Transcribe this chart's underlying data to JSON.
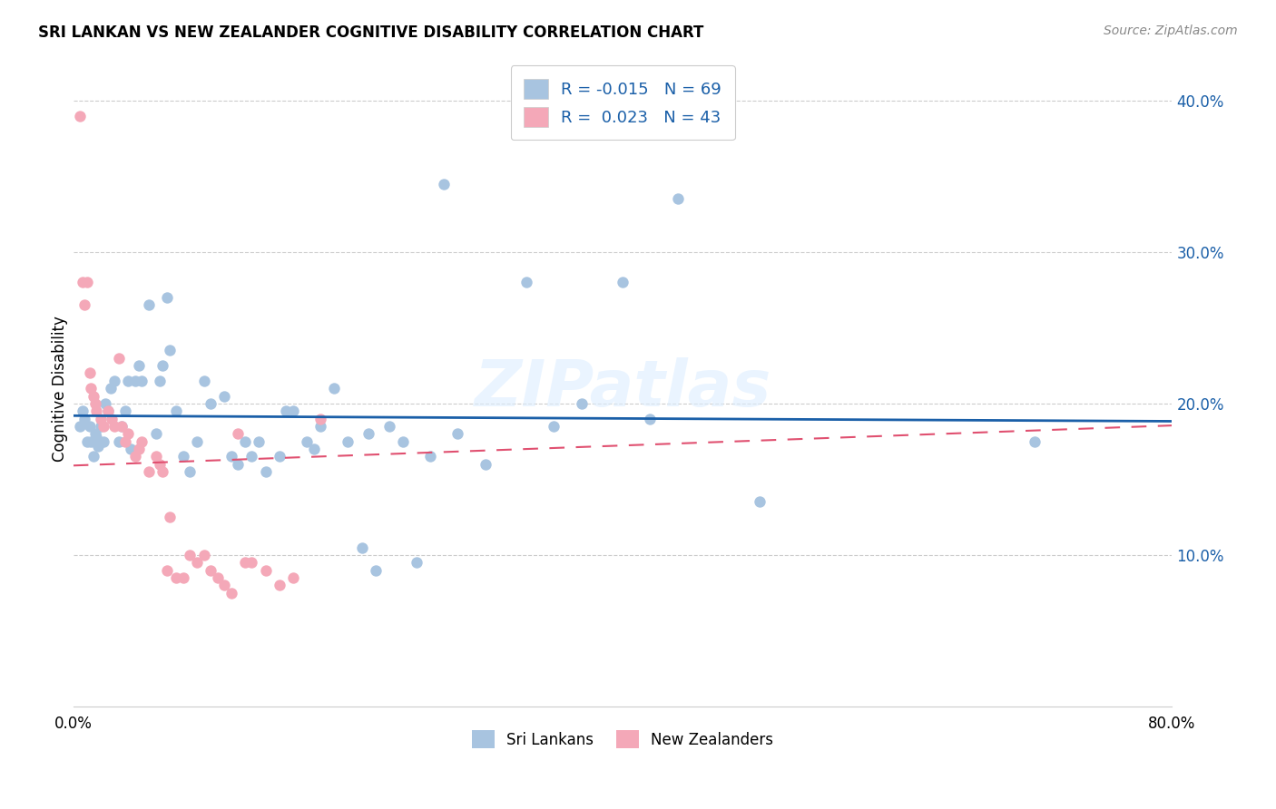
{
  "title": "SRI LANKAN VS NEW ZEALANDER COGNITIVE DISABILITY CORRELATION CHART",
  "source": "Source: ZipAtlas.com",
  "ylabel": "Cognitive Disability",
  "x_min": 0.0,
  "x_max": 0.8,
  "y_min": 0.0,
  "y_max": 0.42,
  "yticks": [
    0.1,
    0.2,
    0.3,
    0.4
  ],
  "ytick_labels": [
    "10.0%",
    "20.0%",
    "30.0%",
    "40.0%"
  ],
  "blue_color": "#a8c4e0",
  "pink_color": "#f4a8b8",
  "blue_line_color": "#1a5fa8",
  "pink_line_color": "#e05070",
  "R_blue": -0.015,
  "N_blue": 69,
  "R_pink": 0.023,
  "N_pink": 43,
  "legend_label_blue": "Sri Lankans",
  "legend_label_pink": "New Zealanders",
  "blue_x": [
    0.005,
    0.007,
    0.008,
    0.01,
    0.012,
    0.013,
    0.015,
    0.016,
    0.017,
    0.018,
    0.02,
    0.022,
    0.023,
    0.025,
    0.027,
    0.03,
    0.033,
    0.035,
    0.038,
    0.04,
    0.042,
    0.045,
    0.048,
    0.05,
    0.055,
    0.06,
    0.063,
    0.065,
    0.068,
    0.07,
    0.075,
    0.08,
    0.085,
    0.09,
    0.095,
    0.1,
    0.11,
    0.115,
    0.12,
    0.125,
    0.13,
    0.135,
    0.14,
    0.15,
    0.155,
    0.16,
    0.17,
    0.175,
    0.18,
    0.19,
    0.2,
    0.21,
    0.215,
    0.22,
    0.23,
    0.24,
    0.25,
    0.26,
    0.27,
    0.28,
    0.3,
    0.33,
    0.35,
    0.37,
    0.4,
    0.42,
    0.44,
    0.5,
    0.7
  ],
  "blue_y": [
    0.185,
    0.195,
    0.19,
    0.175,
    0.185,
    0.175,
    0.165,
    0.18,
    0.178,
    0.172,
    0.185,
    0.175,
    0.2,
    0.195,
    0.21,
    0.215,
    0.175,
    0.185,
    0.195,
    0.215,
    0.17,
    0.215,
    0.225,
    0.215,
    0.265,
    0.18,
    0.215,
    0.225,
    0.27,
    0.235,
    0.195,
    0.165,
    0.155,
    0.175,
    0.215,
    0.2,
    0.205,
    0.165,
    0.16,
    0.175,
    0.165,
    0.175,
    0.155,
    0.165,
    0.195,
    0.195,
    0.175,
    0.17,
    0.185,
    0.21,
    0.175,
    0.105,
    0.18,
    0.09,
    0.185,
    0.175,
    0.095,
    0.165,
    0.345,
    0.18,
    0.16,
    0.28,
    0.185,
    0.2,
    0.28,
    0.19,
    0.335,
    0.135,
    0.175
  ],
  "pink_x": [
    0.005,
    0.007,
    0.008,
    0.01,
    0.012,
    0.013,
    0.015,
    0.016,
    0.017,
    0.02,
    0.022,
    0.025,
    0.028,
    0.03,
    0.033,
    0.035,
    0.038,
    0.04,
    0.045,
    0.048,
    0.05,
    0.055,
    0.06,
    0.063,
    0.065,
    0.068,
    0.07,
    0.075,
    0.08,
    0.085,
    0.09,
    0.095,
    0.1,
    0.105,
    0.11,
    0.115,
    0.12,
    0.125,
    0.13,
    0.14,
    0.15,
    0.16,
    0.18
  ],
  "pink_y": [
    0.39,
    0.28,
    0.265,
    0.28,
    0.22,
    0.21,
    0.205,
    0.2,
    0.195,
    0.19,
    0.185,
    0.195,
    0.19,
    0.185,
    0.23,
    0.185,
    0.175,
    0.18,
    0.165,
    0.17,
    0.175,
    0.155,
    0.165,
    0.16,
    0.155,
    0.09,
    0.125,
    0.085,
    0.085,
    0.1,
    0.095,
    0.1,
    0.09,
    0.085,
    0.08,
    0.075,
    0.18,
    0.095,
    0.095,
    0.09,
    0.08,
    0.085,
    0.19
  ]
}
